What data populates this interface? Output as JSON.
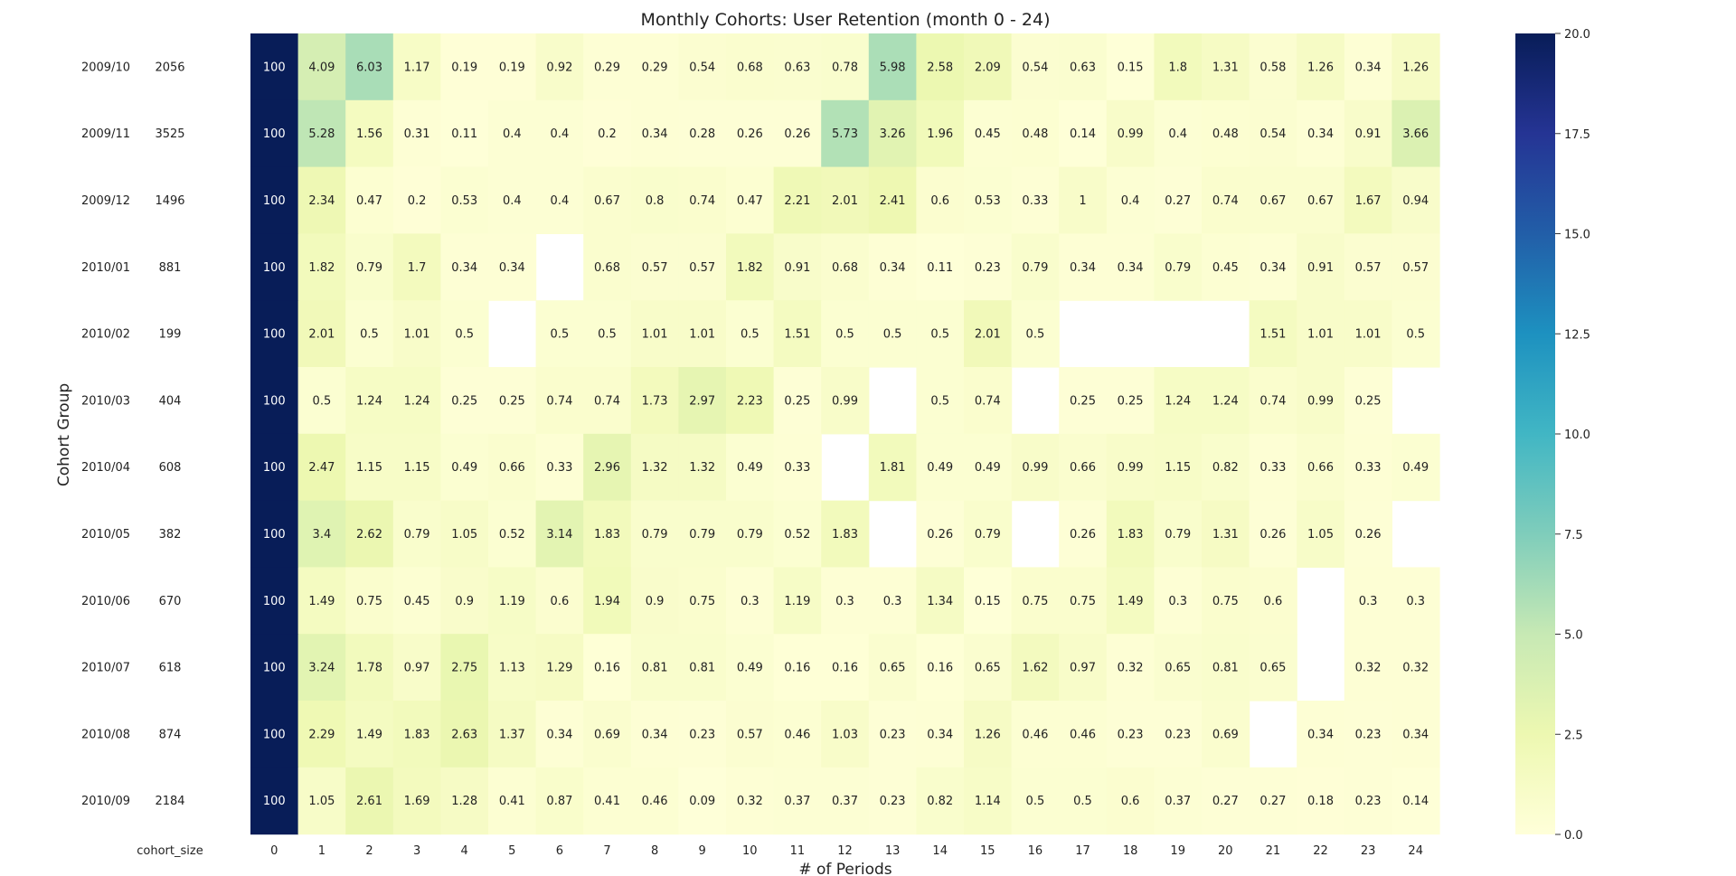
{
  "chart_data": {
    "type": "heatmap",
    "title": "Monthly Cohorts: User Retention (month 0 - 24)",
    "xlabel": "# of Periods",
    "ylabel": "Cohort Group",
    "cohort_size_label": "cohort_size",
    "periods": [
      "0",
      "1",
      "2",
      "3",
      "4",
      "5",
      "6",
      "7",
      "8",
      "9",
      "10",
      "11",
      "12",
      "13",
      "14",
      "15",
      "16",
      "17",
      "18",
      "19",
      "20",
      "21",
      "22",
      "23",
      "24"
    ],
    "cohorts": [
      "2009/10",
      "2009/11",
      "2009/12",
      "2010/01",
      "2010/02",
      "2010/03",
      "2010/04",
      "2010/05",
      "2010/06",
      "2010/07",
      "2010/08",
      "2010/09"
    ],
    "cohort_sizes": [
      2056,
      3525,
      1496,
      881,
      199,
      404,
      608,
      382,
      670,
      618,
      874,
      2184
    ],
    "values": [
      [
        100,
        4.09,
        6.03,
        1.17,
        0.19,
        0.19,
        0.92,
        0.29,
        0.29,
        0.54,
        0.68,
        0.63,
        0.78,
        5.98,
        2.58,
        2.09,
        0.54,
        0.63,
        0.15,
        1.8,
        1.31,
        0.58,
        1.26,
        0.34,
        1.26
      ],
      [
        100,
        5.28,
        1.56,
        0.31,
        0.11,
        0.4,
        0.4,
        0.2,
        0.34,
        0.28,
        0.26,
        0.26,
        5.73,
        3.26,
        1.96,
        0.45,
        0.48,
        0.14,
        0.99,
        0.4,
        0.48,
        0.54,
        0.34,
        0.91,
        3.66
      ],
      [
        100,
        2.34,
        0.47,
        0.2,
        0.53,
        0.4,
        0.4,
        0.67,
        0.8,
        0.74,
        0.47,
        2.21,
        2.01,
        2.41,
        0.6,
        0.53,
        0.33,
        1,
        0.4,
        0.27,
        0.74,
        0.67,
        0.67,
        1.67,
        0.94
      ],
      [
        100,
        1.82,
        0.79,
        1.7,
        0.34,
        0.34,
        null,
        0.68,
        0.57,
        0.57,
        1.82,
        0.91,
        0.68,
        0.34,
        0.11,
        0.23,
        0.79,
        0.34,
        0.34,
        0.79,
        0.45,
        0.34,
        0.91,
        0.57,
        0.57
      ],
      [
        100,
        2.01,
        0.5,
        1.01,
        0.5,
        null,
        0.5,
        0.5,
        1.01,
        1.01,
        0.5,
        1.51,
        0.5,
        0.5,
        0.5,
        2.01,
        0.5,
        null,
        null,
        null,
        null,
        1.51,
        1.01,
        1.01,
        0.5
      ],
      [
        100,
        0.5,
        1.24,
        1.24,
        0.25,
        0.25,
        0.74,
        0.74,
        1.73,
        2.97,
        2.23,
        0.25,
        0.99,
        null,
        0.5,
        0.74,
        null,
        0.25,
        0.25,
        1.24,
        1.24,
        0.74,
        0.99,
        0.25,
        null
      ],
      [
        100,
        2.47,
        1.15,
        1.15,
        0.49,
        0.66,
        0.33,
        2.96,
        1.32,
        1.32,
        0.49,
        0.33,
        null,
        1.81,
        0.49,
        0.49,
        0.99,
        0.66,
        0.99,
        1.15,
        0.82,
        0.33,
        0.66,
        0.33,
        0.49
      ],
      [
        100,
        3.4,
        2.62,
        0.79,
        1.05,
        0.52,
        3.14,
        1.83,
        0.79,
        0.79,
        0.79,
        0.52,
        1.83,
        null,
        0.26,
        0.79,
        null,
        0.26,
        1.83,
        0.79,
        1.31,
        0.26,
        1.05,
        0.26,
        null
      ],
      [
        100,
        1.49,
        0.75,
        0.45,
        0.9,
        1.19,
        0.6,
        1.94,
        0.9,
        0.75,
        0.3,
        1.19,
        0.3,
        0.3,
        1.34,
        0.15,
        0.75,
        0.75,
        1.49,
        0.3,
        0.75,
        0.6,
        null,
        0.3,
        0.3
      ],
      [
        100,
        3.24,
        1.78,
        0.97,
        2.75,
        1.13,
        1.29,
        0.16,
        0.81,
        0.81,
        0.49,
        0.16,
        0.16,
        0.65,
        0.16,
        0.65,
        1.62,
        0.97,
        0.32,
        0.65,
        0.81,
        0.65,
        null,
        0.32,
        0.32
      ],
      [
        100,
        2.29,
        1.49,
        1.83,
        2.63,
        1.37,
        0.34,
        0.69,
        0.34,
        0.23,
        0.57,
        0.46,
        1.03,
        0.23,
        0.34,
        1.26,
        0.46,
        0.46,
        0.23,
        0.23,
        0.69,
        null,
        0.34,
        0.23,
        0.34
      ],
      [
        100,
        1.05,
        2.61,
        1.69,
        1.28,
        0.41,
        0.87,
        0.41,
        0.46,
        0.09,
        0.32,
        0.37,
        0.37,
        0.23,
        0.82,
        1.14,
        0.5,
        0.5,
        0.6,
        0.37,
        0.27,
        0.27,
        0.18,
        0.23,
        0.14
      ]
    ],
    "vmin": 0,
    "vmax": 20,
    "colormap": "YlGnBu",
    "colorbar_ticks": [
      "0.0",
      "2.5",
      "5.0",
      "7.5",
      "10.0",
      "12.5",
      "15.0",
      "17.5",
      "20.0"
    ],
    "colormap_stops": [
      "#ffffd9",
      "#edf8b1",
      "#c7e9b4",
      "#7fcdbb",
      "#41b6c4",
      "#1d91c0",
      "#225ea8",
      "#253494",
      "#081d58"
    ]
  }
}
